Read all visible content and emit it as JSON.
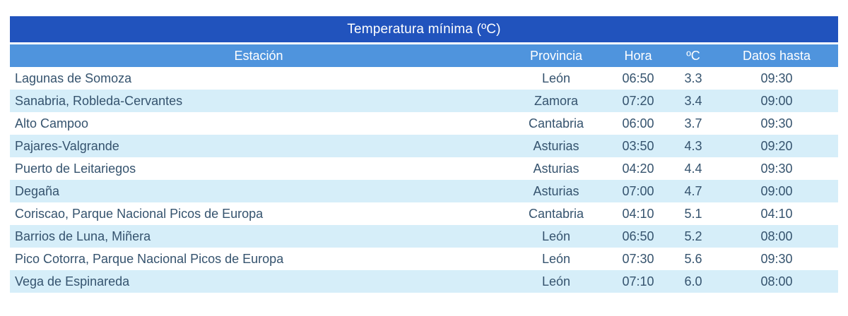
{
  "chart_data": {
    "type": "table",
    "title": "Temperatura mínima (ºC)",
    "columns": [
      "Estación",
      "Provincia",
      "Hora",
      "ºC",
      "Datos hasta"
    ],
    "rows": [
      [
        "Lagunas de Somoza",
        "León",
        "06:50",
        "3.3",
        "09:30"
      ],
      [
        "Sanabria, Robleda-Cervantes",
        "Zamora",
        "07:20",
        "3.4",
        "09:00"
      ],
      [
        "Alto Campoo",
        "Cantabria",
        "06:00",
        "3.7",
        "09:30"
      ],
      [
        "Pajares-Valgrande",
        "Asturias",
        "03:50",
        "4.3",
        "09:20"
      ],
      [
        "Puerto de Leitariegos",
        "Asturias",
        "04:20",
        "4.4",
        "09:30"
      ],
      [
        "Degaña",
        "Asturias",
        "07:00",
        "4.7",
        "09:00"
      ],
      [
        "Coriscao, Parque Nacional Picos de Europa",
        "Cantabria",
        "04:10",
        "5.1",
        "04:10"
      ],
      [
        "Barrios de Luna, Miñera",
        "León",
        "06:50",
        "5.2",
        "08:00"
      ],
      [
        "Pico Cotorra, Parque Nacional Picos de Europa",
        "León",
        "07:30",
        "5.6",
        "09:30"
      ],
      [
        "Vega de Espinareda",
        "León",
        "07:10",
        "6.0",
        "08:00"
      ]
    ],
    "layout": {
      "row_striping": "white / pale blue alternating, starting white",
      "first_column_align": "left",
      "other_columns_align": "center"
    }
  },
  "colors": {
    "title_bg": "#2153bd",
    "header_bg": "#4f94dd",
    "alt_row_bg": "#d6eef9",
    "row_text": "#35536e",
    "header_text": "#ffffff"
  }
}
